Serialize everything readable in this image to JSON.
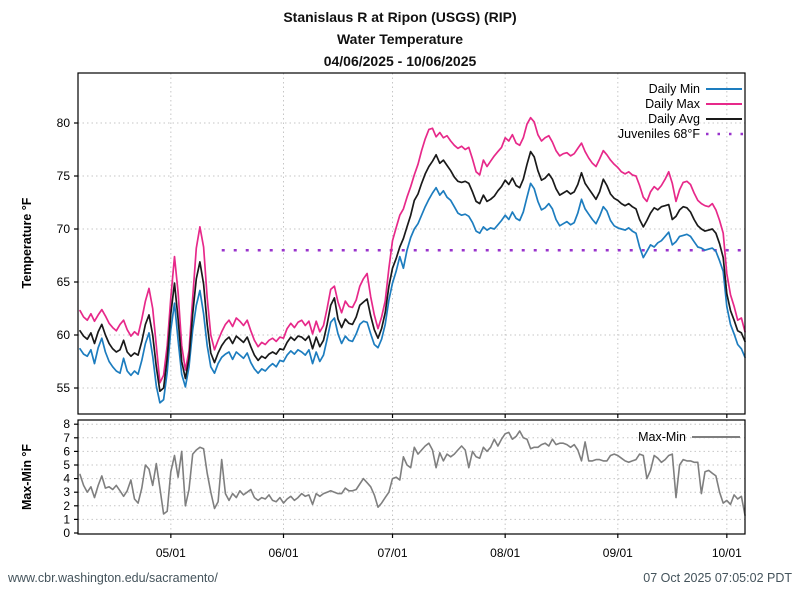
{
  "title": {
    "line1": "Stanislaus R at Ripon (USGS) (RIP)",
    "line2": "Water Temperature",
    "line3": "04/06/2025 - 10/06/2025"
  },
  "footer": {
    "url": "www.cbr.washington.edu/sacramento/",
    "timestamp": "07 Oct 2025 07:05:02 PDT"
  },
  "colors": {
    "daily_min": "#1d7dbf",
    "daily_max": "#e7298a",
    "daily_avg": "#1a1a1a",
    "juveniles": "#9933cc",
    "max_min": "#7f7f7f",
    "grid": "#c6c6c6",
    "axis": "#000000"
  },
  "chart_data": [
    {
      "type": "line",
      "ylabel": "Temperature °F",
      "ylim": [
        52.5,
        84.5
      ],
      "yticks": [
        55,
        60,
        65,
        70,
        75,
        80
      ],
      "grid": true,
      "legend_position": "top-right",
      "x_axis": {
        "start_date": "04/06/2025",
        "end_date": "10/06/2025",
        "unit": "days since 04/06/2025",
        "domain_days": [
          0,
          183
        ],
        "tick_days": [
          25,
          56,
          86,
          117,
          148,
          178
        ],
        "tick_labels": [
          "05/01",
          "06/01",
          "07/01",
          "08/01",
          "09/01",
          "10/01"
        ]
      },
      "series": [
        {
          "name": "Daily Min",
          "color_key": "daily_min",
          "style": "solid",
          "values": [
            58.7,
            58.2,
            58.0,
            58.6,
            57.3,
            58.8,
            59.7,
            58.4,
            57.5,
            57.0,
            56.6,
            56.4,
            57.8,
            56.6,
            56.2,
            56.6,
            56.3,
            57.6,
            59.2,
            60.2,
            58.0,
            55.2,
            53.6,
            53.9,
            56.5,
            60.5,
            63.0,
            59.5,
            56.3,
            55.1,
            57.0,
            60.5,
            62.8,
            64.2,
            62.0,
            59.0,
            57.0,
            56.4,
            57.3,
            57.9,
            58.2,
            58.4,
            57.7,
            58.4,
            58.1,
            57.8,
            58.3,
            57.4,
            56.8,
            56.4,
            56.8,
            56.6,
            57.0,
            57.3,
            57.0,
            57.6,
            57.5,
            58.1,
            58.5,
            58.2,
            58.6,
            58.4,
            58.1,
            58.6,
            57.3,
            58.4,
            57.5,
            58.1,
            59.6,
            61.2,
            61.6,
            60.1,
            59.2,
            59.9,
            59.5,
            59.4,
            60.1,
            61.0,
            61.3,
            61.2,
            60.1,
            59.1,
            58.8,
            59.6,
            61.0,
            63.3,
            64.9,
            66.0,
            67.4,
            66.3,
            68.0,
            69.2,
            70.0,
            70.5,
            71.3,
            72.1,
            72.8,
            73.4,
            73.9,
            73.2,
            73.6,
            73.0,
            72.7,
            72.1,
            71.5,
            71.3,
            71.4,
            71.2,
            70.6,
            69.8,
            69.6,
            70.2,
            69.9,
            70.1,
            70.0,
            70.4,
            70.8,
            71.3,
            70.9,
            71.6,
            71.0,
            70.8,
            71.6,
            73.0,
            74.3,
            73.8,
            72.6,
            71.8,
            72.0,
            72.4,
            71.9,
            70.9,
            70.3,
            70.5,
            70.7,
            70.4,
            70.6,
            71.5,
            72.8,
            71.9,
            71.4,
            70.9,
            70.5,
            71.2,
            72.1,
            71.7,
            70.8,
            70.3,
            70.1,
            70.0,
            69.9,
            70.1,
            69.8,
            69.6,
            68.3,
            67.3,
            67.9,
            68.5,
            68.3,
            68.7,
            68.9,
            69.3,
            69.7,
            68.5,
            68.8,
            69.3,
            69.4,
            69.5,
            69.3,
            68.8,
            68.3,
            68.2,
            68.0,
            68.1,
            68.2,
            67.9,
            67.0,
            66.0,
            62.7,
            61.0,
            60.1,
            59.1,
            58.7,
            57.9
          ]
        },
        {
          "name": "Daily Max",
          "color_key": "daily_max",
          "style": "solid",
          "values": [
            62.3,
            61.7,
            61.4,
            62.0,
            61.3,
            61.9,
            62.4,
            61.8,
            61.1,
            60.7,
            60.4,
            61.0,
            61.4,
            60.5,
            59.9,
            60.3,
            60.0,
            61.5,
            63.2,
            64.4,
            62.5,
            59.0,
            55.5,
            56.2,
            59.0,
            63.5,
            67.4,
            64.0,
            59.0,
            56.7,
            58.5,
            63.5,
            68.2,
            70.2,
            68.3,
            63.5,
            60.0,
            58.6,
            59.5,
            60.3,
            61.0,
            61.4,
            60.8,
            61.6,
            61.3,
            60.9,
            61.4,
            60.4,
            59.5,
            58.9,
            59.3,
            59.1,
            59.5,
            59.7,
            59.4,
            59.8,
            59.7,
            60.6,
            61.1,
            60.7,
            61.2,
            61.4,
            60.9,
            61.3,
            60.1,
            61.3,
            60.3,
            60.9,
            62.5,
            64.3,
            64.6,
            63.1,
            62.1,
            63.2,
            62.7,
            62.6,
            63.3,
            64.6,
            65.3,
            65.8,
            63.6,
            61.9,
            60.6,
            61.7,
            63.2,
            66.3,
            68.9,
            70.1,
            71.3,
            71.9,
            73.0,
            74.0,
            75.1,
            76.1,
            77.4,
            78.5,
            79.4,
            79.5,
            78.7,
            79.1,
            78.6,
            78.8,
            78.3,
            77.9,
            77.6,
            77.8,
            77.5,
            77.7,
            76.6,
            75.4,
            75.1,
            76.5,
            75.9,
            76.4,
            76.9,
            77.3,
            77.7,
            78.6,
            78.3,
            78.9,
            78.1,
            77.9,
            78.6,
            79.9,
            80.5,
            80.1,
            78.9,
            78.3,
            78.6,
            78.8,
            78.2,
            77.4,
            76.9,
            77.1,
            77.2,
            76.9,
            77.1,
            77.6,
            78.1,
            77.3,
            76.7,
            76.2,
            75.9,
            76.6,
            77.4,
            77.0,
            76.5,
            76.1,
            75.8,
            75.4,
            75.2,
            75.4,
            75.1,
            75.0,
            74.1,
            73.0,
            72.6,
            73.5,
            74.0,
            73.7,
            74.1,
            74.7,
            75.4,
            74.3,
            72.6,
            73.7,
            74.4,
            74.5,
            74.2,
            73.4,
            72.7,
            72.4,
            72.2,
            72.1,
            72.4,
            71.8,
            70.8,
            69.6,
            65.8,
            63.8,
            62.7,
            61.4,
            61.6,
            60.3
          ]
        },
        {
          "name": "Daily Avg",
          "color_key": "daily_avg",
          "style": "solid",
          "values": [
            60.4,
            59.9,
            59.6,
            60.2,
            59.2,
            60.3,
            61.0,
            60.0,
            59.2,
            58.7,
            58.4,
            58.6,
            59.5,
            58.4,
            58.0,
            58.3,
            58.1,
            59.4,
            61.0,
            61.9,
            60.0,
            57.0,
            54.7,
            55.0,
            57.8,
            62.0,
            64.9,
            61.5,
            57.5,
            55.9,
            57.8,
            62.0,
            65.3,
            66.9,
            64.8,
            61.0,
            58.3,
            57.4,
            58.3,
            59.0,
            59.5,
            59.8,
            59.2,
            59.9,
            59.6,
            59.3,
            59.8,
            58.9,
            58.1,
            57.6,
            58.0,
            57.8,
            58.2,
            58.4,
            58.2,
            58.7,
            58.6,
            59.3,
            59.8,
            59.5,
            59.9,
            59.8,
            59.5,
            59.9,
            58.7,
            59.8,
            58.9,
            59.5,
            61.0,
            62.8,
            63.5,
            61.5,
            60.7,
            61.5,
            61.1,
            61.0,
            61.7,
            62.8,
            63.1,
            63.4,
            61.8,
            60.5,
            59.7,
            60.6,
            62.1,
            64.6,
            66.3,
            67.2,
            68.3,
            69.1,
            70.2,
            71.3,
            72.7,
            73.3,
            74.3,
            75.2,
            75.9,
            76.4,
            77.0,
            76.2,
            76.5,
            76.0,
            75.5,
            74.9,
            74.5,
            74.4,
            74.5,
            74.3,
            73.5,
            72.6,
            72.4,
            73.2,
            72.6,
            72.8,
            73.1,
            73.6,
            74.0,
            74.6,
            74.2,
            74.8,
            74.1,
            73.9,
            74.7,
            76.1,
            77.3,
            76.8,
            75.5,
            74.6,
            74.8,
            75.2,
            74.7,
            73.8,
            73.2,
            73.4,
            73.6,
            73.3,
            73.5,
            74.2,
            75.3,
            74.3,
            73.8,
            73.3,
            72.8,
            73.5,
            74.7,
            74.1,
            73.3,
            72.9,
            72.7,
            72.4,
            72.2,
            72.4,
            72.1,
            71.9,
            70.9,
            70.2,
            70.8,
            71.5,
            72.0,
            71.8,
            72.1,
            72.2,
            72.3,
            70.9,
            71.2,
            71.8,
            72.1,
            72.0,
            71.6,
            70.9,
            70.3,
            70.0,
            69.8,
            69.9,
            70.0,
            69.6,
            68.6,
            67.3,
            63.9,
            62.3,
            61.4,
            60.4,
            60.2,
            59.4
          ]
        },
        {
          "name": "Juveniles 68°F",
          "color_key": "juveniles",
          "style": "dotted",
          "constant_value": 68,
          "span_days": [
            39,
            183
          ]
        }
      ]
    },
    {
      "type": "line",
      "ylabel": "Max-Min °F",
      "ylim": [
        0,
        8.3
      ],
      "yticks": [
        0,
        1,
        2,
        3,
        4,
        5,
        6,
        7,
        8
      ],
      "grid": true,
      "legend_position": "top-right",
      "series": [
        {
          "name": "Max-Min",
          "color_key": "max_min",
          "style": "solid",
          "values": [
            4.3,
            3.5,
            3.0,
            3.4,
            2.6,
            3.5,
            4.2,
            3.3,
            3.4,
            3.2,
            3.5,
            3.1,
            2.7,
            3.1,
            3.9,
            2.5,
            2.2,
            3.3,
            5.0,
            4.7,
            3.5,
            5.1,
            3.3,
            1.4,
            1.6,
            4.5,
            5.7,
            4.1,
            6.0,
            2.0,
            3.2,
            5.8,
            6.1,
            6.3,
            6.2,
            4.4,
            3.0,
            1.8,
            2.3,
            5.4,
            2.9,
            2.4,
            2.9,
            2.6,
            3.1,
            2.8,
            3.0,
            3.2,
            2.6,
            2.4,
            2.6,
            2.5,
            2.8,
            2.4,
            2.3,
            2.6,
            2.2,
            2.5,
            2.7,
            2.4,
            2.6,
            2.9,
            2.7,
            2.8,
            2.1,
            2.9,
            2.7,
            2.9,
            3.0,
            3.1,
            3.0,
            2.9,
            2.9,
            3.3,
            3.1,
            3.1,
            3.2,
            3.6,
            4.0,
            3.7,
            3.4,
            2.8,
            1.9,
            2.2,
            2.6,
            3.0,
            4.0,
            4.1,
            3.9,
            5.6,
            5.0,
            4.8,
            6.3,
            5.8,
            6.1,
            6.4,
            6.6,
            6.1,
            4.8,
            5.9,
            5.3,
            5.8,
            5.6,
            5.8,
            6.1,
            6.4,
            6.1,
            4.8,
            6.0,
            5.6,
            5.5,
            6.3,
            6.0,
            6.3,
            6.9,
            6.4,
            6.9,
            7.3,
            7.4,
            6.9,
            7.1,
            7.5,
            7.0,
            6.9,
            6.2,
            6.3,
            6.3,
            6.5,
            6.6,
            6.4,
            6.9,
            6.5,
            6.6,
            6.6,
            6.5,
            6.3,
            6.5,
            6.1,
            5.3,
            6.7,
            5.3,
            5.3,
            5.4,
            5.4,
            5.3,
            5.3,
            5.7,
            5.8,
            5.7,
            5.5,
            5.3,
            5.2,
            5.3,
            5.4,
            5.8,
            5.7,
            4.0,
            4.6,
            5.7,
            5.5,
            5.2,
            5.4,
            5.7,
            5.8,
            2.6,
            5.0,
            5.4,
            5.3,
            5.3,
            5.2,
            5.2,
            2.9,
            4.5,
            4.6,
            4.4,
            4.2,
            3.0,
            2.2,
            2.4,
            2.1,
            2.8,
            2.5,
            2.7,
            1.3
          ]
        }
      ]
    }
  ]
}
